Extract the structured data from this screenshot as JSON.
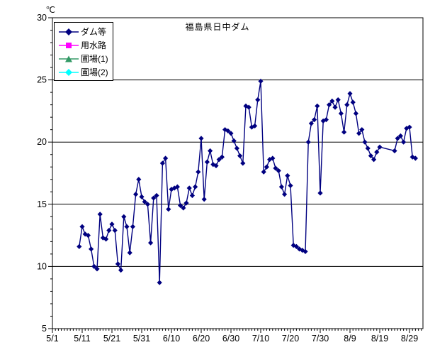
{
  "title": "福島県日中ダム",
  "y_axis": {
    "unit_label": "℃",
    "min": 5,
    "max": 30,
    "major_tick_labels": [
      "5",
      "10",
      "15",
      "20",
      "25",
      "30"
    ],
    "gridlines_at": [
      10,
      15,
      20,
      25
    ]
  },
  "x_axis": {
    "tick_labels": [
      "5/1",
      "5/11",
      "5/21",
      "5/31",
      "6/10",
      "6/20",
      "6/30",
      "7/10",
      "7/20",
      "7/30",
      "8/9",
      "8/19",
      "8/29"
    ]
  },
  "legend": {
    "items": [
      {
        "label": "ダム等",
        "color": "#000080",
        "marker": "diamond"
      },
      {
        "label": "用水路",
        "color": "#FF00FF",
        "marker": "square"
      },
      {
        "label": "圃場(1)",
        "color": "#339966",
        "marker": "triangle"
      },
      {
        "label": "圃場(2)",
        "color": "#00FFFF",
        "marker": "diamond"
      }
    ]
  },
  "chart_data": {
    "type": "line",
    "title": "福島県日中ダム",
    "ylabel": "℃",
    "ylim": [
      5,
      30
    ],
    "x_range": [
      "5/1",
      "9/1"
    ],
    "grid": "horizontal-major",
    "legend_position": "top-left-inside",
    "series": [
      {
        "name": "ダム等",
        "color": "#000080",
        "marker": "diamond",
        "points": [
          [
            "5/10",
            11.6
          ],
          [
            "5/11",
            13.2
          ],
          [
            "5/12",
            12.6
          ],
          [
            "5/13",
            12.5
          ],
          [
            "5/14",
            11.4
          ],
          [
            "5/15",
            10.0
          ],
          [
            "5/16",
            9.8
          ],
          [
            "5/17",
            14.2
          ],
          [
            "5/18",
            12.3
          ],
          [
            "5/19",
            12.2
          ],
          [
            "5/20",
            12.9
          ],
          [
            "5/21",
            13.4
          ],
          [
            "5/22",
            12.9
          ],
          [
            "5/23",
            10.2
          ],
          [
            "5/24",
            9.7
          ],
          [
            "5/25",
            14.0
          ],
          [
            "5/26",
            13.2
          ],
          [
            "5/27",
            11.1
          ],
          [
            "5/28",
            13.2
          ],
          [
            "5/29",
            15.8
          ],
          [
            "5/30",
            17.0
          ],
          [
            "5/31",
            15.6
          ],
          [
            "6/1",
            15.2
          ],
          [
            "6/2",
            15.0
          ],
          [
            "6/3",
            11.9
          ],
          [
            "6/4",
            15.5
          ],
          [
            "6/5",
            15.7
          ],
          [
            "6/6",
            8.7
          ],
          [
            "6/7",
            18.3
          ],
          [
            "6/8",
            18.7
          ],
          [
            "6/9",
            14.6
          ],
          [
            "6/10",
            16.2
          ],
          [
            "6/11",
            16.3
          ],
          [
            "6/12",
            16.4
          ],
          [
            "6/13",
            14.9
          ],
          [
            "6/14",
            14.7
          ],
          [
            "6/15",
            15.1
          ],
          [
            "6/16",
            16.3
          ],
          [
            "6/17",
            15.7
          ],
          [
            "6/18",
            16.4
          ],
          [
            "6/19",
            17.6
          ],
          [
            "6/20",
            20.3
          ],
          [
            "6/21",
            15.4
          ],
          [
            "6/22",
            18.4
          ],
          [
            "6/23",
            19.3
          ],
          [
            "6/24",
            18.2
          ],
          [
            "6/25",
            18.1
          ],
          [
            "6/26",
            18.6
          ],
          [
            "6/27",
            18.8
          ],
          [
            "6/28",
            21.0
          ],
          [
            "6/29",
            20.9
          ],
          [
            "6/30",
            20.7
          ],
          [
            "7/1",
            20.1
          ],
          [
            "7/2",
            19.5
          ],
          [
            "7/3",
            18.9
          ],
          [
            "7/4",
            18.3
          ],
          [
            "7/5",
            22.9
          ],
          [
            "7/6",
            22.8
          ],
          [
            "7/7",
            21.2
          ],
          [
            "7/8",
            21.3
          ],
          [
            "7/9",
            23.4
          ],
          [
            "7/10",
            24.9
          ],
          [
            "7/11",
            17.6
          ],
          [
            "7/12",
            18.0
          ],
          [
            "7/13",
            18.6
          ],
          [
            "7/14",
            18.7
          ],
          [
            "7/15",
            17.9
          ],
          [
            "7/16",
            17.7
          ],
          [
            "7/17",
            16.4
          ],
          [
            "7/18",
            15.8
          ],
          [
            "7/19",
            17.3
          ],
          [
            "7/20",
            16.5
          ],
          [
            "7/21",
            11.7
          ],
          [
            "7/22",
            11.6
          ],
          [
            "7/23",
            11.4
          ],
          [
            "7/24",
            11.3
          ],
          [
            "7/25",
            11.2
          ],
          [
            "7/26",
            20.0
          ],
          [
            "7/27",
            21.5
          ],
          [
            "7/28",
            21.8
          ],
          [
            "7/29",
            22.9
          ],
          [
            "7/30",
            15.9
          ],
          [
            "7/31",
            21.7
          ],
          [
            "8/1",
            21.8
          ],
          [
            "8/2",
            23.0
          ],
          [
            "8/3",
            23.3
          ],
          [
            "8/4",
            22.8
          ],
          [
            "8/5",
            23.4
          ],
          [
            "8/6",
            22.3
          ],
          [
            "8/7",
            20.8
          ],
          [
            "8/8",
            23.0
          ],
          [
            "8/9",
            23.9
          ],
          [
            "8/10",
            23.2
          ],
          [
            "8/11",
            22.3
          ],
          [
            "8/12",
            20.7
          ],
          [
            "8/13",
            21.0
          ],
          [
            "8/14",
            20.0
          ],
          [
            "8/15",
            19.5
          ],
          [
            "8/16",
            18.9
          ],
          [
            "8/17",
            18.6
          ],
          [
            "8/18",
            19.2
          ],
          [
            "8/19",
            19.6
          ],
          [
            "8/24",
            19.3
          ],
          [
            "8/25",
            20.3
          ],
          [
            "8/26",
            20.5
          ],
          [
            "8/27",
            20.0
          ],
          [
            "8/28",
            21.1
          ],
          [
            "8/29",
            21.2
          ],
          [
            "8/30",
            18.8
          ],
          [
            "8/31",
            18.7
          ]
        ]
      },
      {
        "name": "用水路",
        "color": "#FF00FF",
        "marker": "square",
        "points": []
      },
      {
        "name": "圃場(1)",
        "color": "#339966",
        "marker": "triangle",
        "points": []
      },
      {
        "name": "圃場(2)",
        "color": "#00FFFF",
        "marker": "diamond",
        "points": []
      }
    ]
  }
}
